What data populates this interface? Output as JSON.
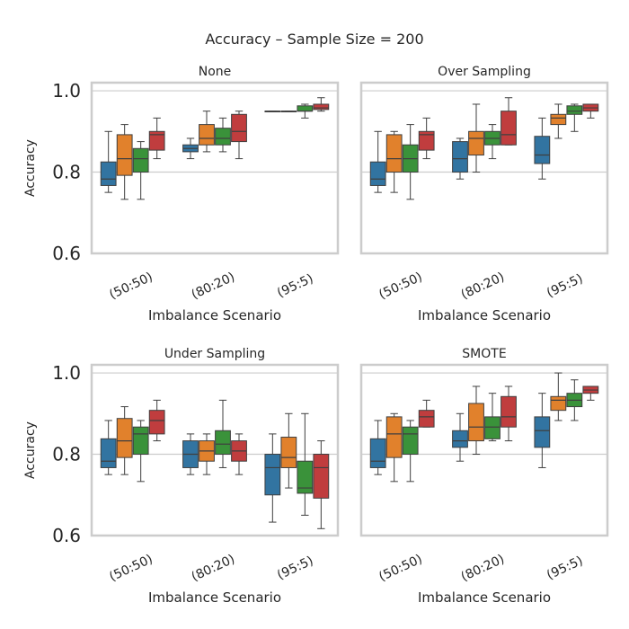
{
  "figure": {
    "suptitle": "Accuracy – Sample Size = 200"
  },
  "palette": [
    "#3274a1",
    "#e1812c",
    "#3a923a",
    "#c03d3e"
  ],
  "chart_data": [
    {
      "type": "box",
      "title": "None",
      "xlabel": "Imbalance Scenario",
      "ylabel": "Accuracy",
      "ylim": [
        0.6,
        1.02
      ],
      "yticks": [
        "0.6",
        "0.8",
        "1.0"
      ],
      "categories": [
        "(50:50)",
        "(80:20)",
        "(95:5)"
      ],
      "grid": true,
      "boxes": [
        [
          {
            "whislo": 0.75,
            "q1": 0.767,
            "med": 0.783,
            "q3": 0.825,
            "whishi": 0.9
          },
          {
            "whislo": 0.733,
            "q1": 0.792,
            "med": 0.833,
            "q3": 0.892,
            "whishi": 0.917
          },
          {
            "whislo": 0.733,
            "q1": 0.8,
            "med": 0.833,
            "q3": 0.858,
            "whishi": 0.875
          },
          {
            "whislo": 0.833,
            "q1": 0.854,
            "med": 0.892,
            "q3": 0.9,
            "whishi": 0.933
          }
        ],
        [
          {
            "whislo": 0.833,
            "q1": 0.85,
            "med": 0.858,
            "q3": 0.867,
            "whishi": 0.883
          },
          {
            "whislo": 0.85,
            "q1": 0.867,
            "med": 0.883,
            "q3": 0.917,
            "whishi": 0.95
          },
          {
            "whislo": 0.85,
            "q1": 0.867,
            "med": 0.883,
            "q3": 0.908,
            "whishi": 0.933
          },
          {
            "whislo": 0.833,
            "q1": 0.875,
            "med": 0.9,
            "q3": 0.942,
            "whishi": 0.95
          }
        ],
        [
          {
            "whislo": 0.95,
            "q1": 0.95,
            "med": 0.95,
            "q3": 0.95,
            "whishi": 0.95
          },
          {
            "whislo": 0.95,
            "q1": 0.95,
            "med": 0.95,
            "q3": 0.95,
            "whishi": 0.95
          },
          {
            "whislo": 0.933,
            "q1": 0.95,
            "med": 0.95,
            "q3": 0.963,
            "whishi": 0.967
          },
          {
            "whislo": 0.95,
            "q1": 0.954,
            "med": 0.958,
            "q3": 0.967,
            "whishi": 0.983
          }
        ]
      ]
    },
    {
      "type": "box",
      "title": "Over Sampling",
      "xlabel": "Imbalance Scenario",
      "ylabel": "",
      "ylim": [
        0.6,
        1.02
      ],
      "yticks": [
        "0.6",
        "0.8",
        "1.0"
      ],
      "categories": [
        "(50:50)",
        "(80:20)",
        "(95:5)"
      ],
      "grid": true,
      "boxes": [
        [
          {
            "whislo": 0.75,
            "q1": 0.767,
            "med": 0.783,
            "q3": 0.825,
            "whishi": 0.9
          },
          {
            "whislo": 0.75,
            "q1": 0.8,
            "med": 0.833,
            "q3": 0.892,
            "whishi": 0.9
          },
          {
            "whislo": 0.733,
            "q1": 0.8,
            "med": 0.833,
            "q3": 0.867,
            "whishi": 0.917
          },
          {
            "whislo": 0.833,
            "q1": 0.854,
            "med": 0.892,
            "q3": 0.9,
            "whishi": 0.933
          }
        ],
        [
          {
            "whislo": 0.783,
            "q1": 0.8,
            "med": 0.833,
            "q3": 0.875,
            "whishi": 0.883
          },
          {
            "whislo": 0.8,
            "q1": 0.842,
            "med": 0.883,
            "q3": 0.9,
            "whishi": 0.967
          },
          {
            "whislo": 0.833,
            "q1": 0.867,
            "med": 0.883,
            "q3": 0.9,
            "whishi": 0.917
          },
          {
            "whislo": 0.867,
            "q1": 0.867,
            "med": 0.892,
            "q3": 0.95,
            "whishi": 0.983
          }
        ],
        [
          {
            "whislo": 0.783,
            "q1": 0.821,
            "med": 0.842,
            "q3": 0.888,
            "whishi": 0.933
          },
          {
            "whislo": 0.883,
            "q1": 0.917,
            "med": 0.933,
            "q3": 0.942,
            "whishi": 0.967
          },
          {
            "whislo": 0.9,
            "q1": 0.942,
            "med": 0.95,
            "q3": 0.963,
            "whishi": 0.967
          },
          {
            "whislo": 0.933,
            "q1": 0.95,
            "med": 0.958,
            "q3": 0.967,
            "whishi": 0.967
          }
        ]
      ]
    },
    {
      "type": "box",
      "title": "Under Sampling",
      "xlabel": "Imbalance Scenario",
      "ylabel": "Accuracy",
      "ylim": [
        0.6,
        1.02
      ],
      "yticks": [
        "0.6",
        "0.8",
        "1.0"
      ],
      "categories": [
        "(50:50)",
        "(80:20)",
        "(95:5)"
      ],
      "grid": true,
      "boxes": [
        [
          {
            "whislo": 0.75,
            "q1": 0.767,
            "med": 0.783,
            "q3": 0.838,
            "whishi": 0.883
          },
          {
            "whislo": 0.75,
            "q1": 0.792,
            "med": 0.833,
            "q3": 0.888,
            "whishi": 0.917
          },
          {
            "whislo": 0.733,
            "q1": 0.8,
            "med": 0.85,
            "q3": 0.867,
            "whishi": 0.883
          },
          {
            "whislo": 0.833,
            "q1": 0.85,
            "med": 0.883,
            "q3": 0.908,
            "whishi": 0.933
          }
        ],
        [
          {
            "whislo": 0.75,
            "q1": 0.767,
            "med": 0.8,
            "q3": 0.833,
            "whishi": 0.85
          },
          {
            "whislo": 0.75,
            "q1": 0.783,
            "med": 0.808,
            "q3": 0.833,
            "whishi": 0.85
          },
          {
            "whislo": 0.767,
            "q1": 0.8,
            "med": 0.825,
            "q3": 0.858,
            "whishi": 0.933
          },
          {
            "whislo": 0.75,
            "q1": 0.783,
            "med": 0.808,
            "q3": 0.833,
            "whishi": 0.85
          }
        ],
        [
          {
            "whislo": 0.633,
            "q1": 0.7,
            "med": 0.767,
            "q3": 0.8,
            "whishi": 0.85
          },
          {
            "whislo": 0.717,
            "q1": 0.767,
            "med": 0.792,
            "q3": 0.842,
            "whishi": 0.9
          },
          {
            "whislo": 0.65,
            "q1": 0.704,
            "med": 0.717,
            "q3": 0.783,
            "whishi": 0.9
          },
          {
            "whislo": 0.617,
            "q1": 0.692,
            "med": 0.767,
            "q3": 0.8,
            "whishi": 0.833
          }
        ]
      ]
    },
    {
      "type": "box",
      "title": "SMOTE",
      "xlabel": "Imbalance Scenario",
      "ylabel": "",
      "ylim": [
        0.6,
        1.02
      ],
      "yticks": [
        "0.6",
        "0.8",
        "1.0"
      ],
      "categories": [
        "(50:50)",
        "(80:20)",
        "(95:5)"
      ],
      "grid": true,
      "boxes": [
        [
          {
            "whislo": 0.75,
            "q1": 0.767,
            "med": 0.783,
            "q3": 0.838,
            "whishi": 0.883
          },
          {
            "whislo": 0.733,
            "q1": 0.792,
            "med": 0.85,
            "q3": 0.892,
            "whishi": 0.9
          },
          {
            "whislo": 0.733,
            "q1": 0.8,
            "med": 0.85,
            "q3": 0.867,
            "whishi": 0.883
          },
          {
            "whislo": 0.867,
            "q1": 0.867,
            "med": 0.892,
            "q3": 0.908,
            "whishi": 0.933
          }
        ],
        [
          {
            "whislo": 0.783,
            "q1": 0.817,
            "med": 0.833,
            "q3": 0.858,
            "whishi": 0.9
          },
          {
            "whislo": 0.8,
            "q1": 0.833,
            "med": 0.867,
            "q3": 0.925,
            "whishi": 0.967
          },
          {
            "whislo": 0.833,
            "q1": 0.838,
            "med": 0.867,
            "q3": 0.892,
            "whishi": 0.95
          },
          {
            "whislo": 0.833,
            "q1": 0.867,
            "med": 0.892,
            "q3": 0.942,
            "whishi": 0.967
          }
        ],
        [
          {
            "whislo": 0.767,
            "q1": 0.817,
            "med": 0.858,
            "q3": 0.892,
            "whishi": 0.95
          },
          {
            "whislo": 0.883,
            "q1": 0.908,
            "med": 0.933,
            "q3": 0.942,
            "whishi": 1.0
          },
          {
            "whislo": 0.883,
            "q1": 0.917,
            "med": 0.933,
            "q3": 0.95,
            "whishi": 0.983
          },
          {
            "whislo": 0.933,
            "q1": 0.95,
            "med": 0.958,
            "q3": 0.967,
            "whishi": 0.967
          }
        ]
      ]
    }
  ]
}
